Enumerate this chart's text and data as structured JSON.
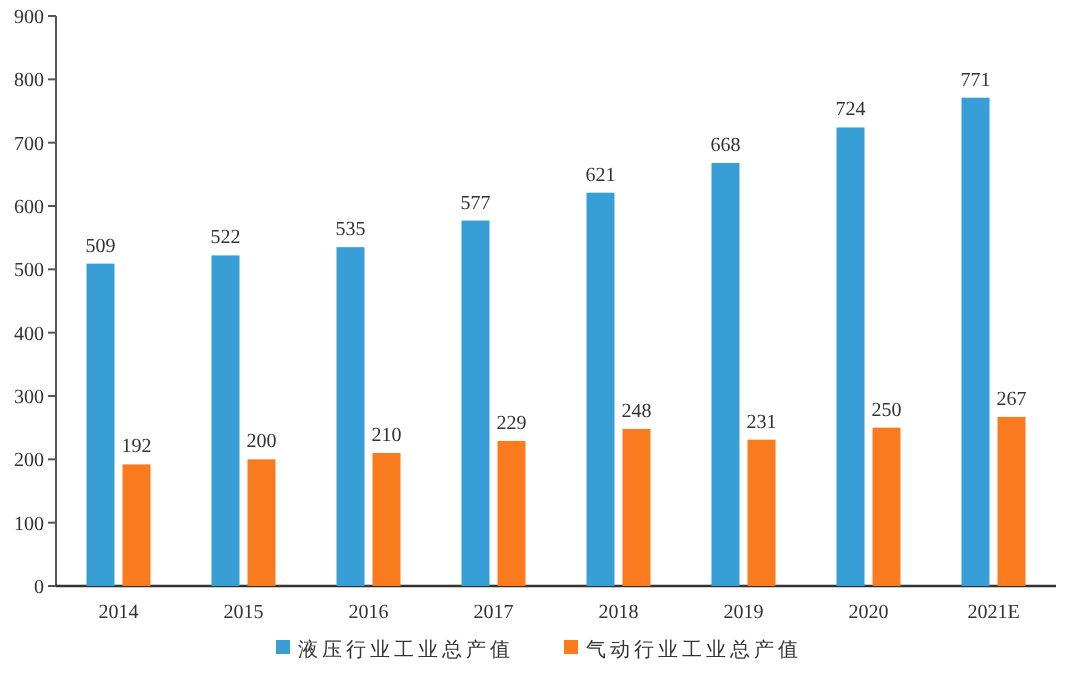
{
  "chart_data": {
    "type": "bar",
    "categories": [
      "2014",
      "2015",
      "2016",
      "2017",
      "2018",
      "2019",
      "2020",
      "2021E"
    ],
    "series": [
      {
        "name": "液压行业工业总产值",
        "color": "#389fd6",
        "values": [
          509,
          522,
          535,
          577,
          621,
          668,
          724,
          771
        ]
      },
      {
        "name": "气动行业工业总产值",
        "color": "#fa7b1e",
        "values": [
          192,
          200,
          210,
          229,
          248,
          231,
          250,
          267
        ]
      }
    ],
    "ylim": [
      0,
      900
    ],
    "yticks": [
      0,
      100,
      200,
      300,
      400,
      500,
      600,
      700,
      800,
      900
    ],
    "data_labels": true,
    "legend": "bottom"
  }
}
